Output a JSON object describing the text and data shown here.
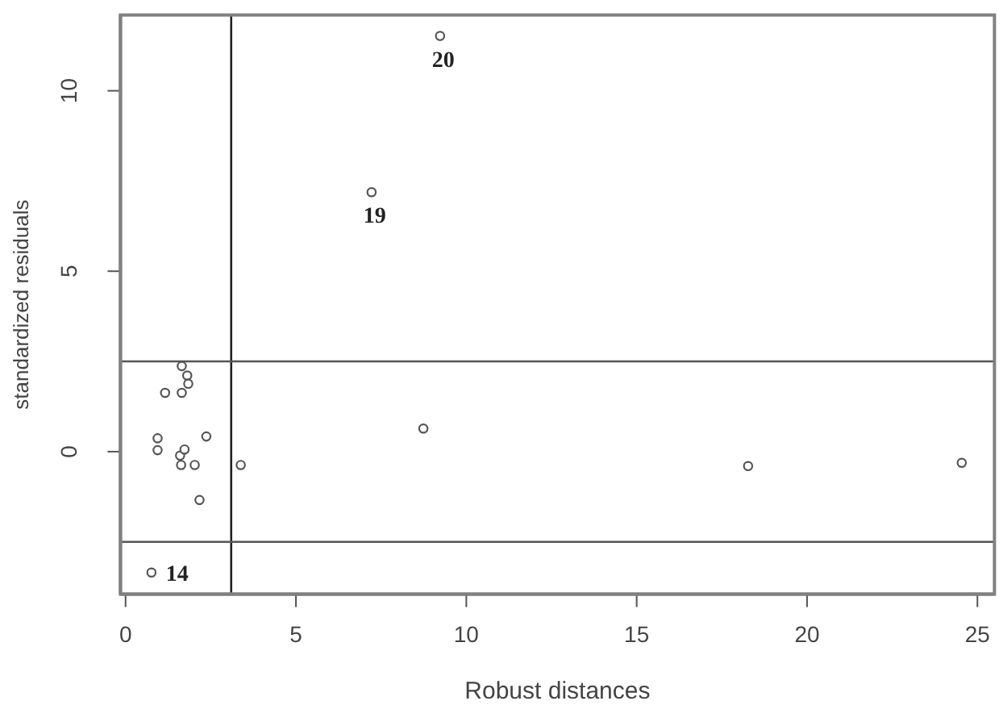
{
  "chart_data": {
    "type": "scatter",
    "xlabel": "Robust distances",
    "ylabel": "standardized residuals",
    "x": [
      0.76,
      0.94,
      0.94,
      1.16,
      1.6,
      1.63,
      1.65,
      1.65,
      1.73,
      1.81,
      1.84,
      2.03,
      2.17,
      2.37,
      3.38,
      7.22,
      8.74,
      9.23,
      18.27,
      24.54
    ],
    "values": [
      -3.35,
      0.37,
      0.04,
      1.63,
      -0.11,
      -0.37,
      2.37,
      1.63,
      0.06,
      2.11,
      1.88,
      -0.37,
      -1.34,
      0.42,
      -0.37,
      7.19,
      0.64,
      11.52,
      -0.4,
      -0.31
    ],
    "color": "#555555",
    "marker": "circle",
    "xlim": [
      -0.15,
      25.5
    ],
    "ylim": [
      -3.95,
      12.1
    ],
    "xticks": [
      0,
      5,
      10,
      15,
      20,
      25
    ],
    "yticks": [
      0,
      5,
      10
    ],
    "ref_lines": [
      {
        "axis": "x",
        "value": 3.1,
        "color": "#222222"
      },
      {
        "axis": "y",
        "value": 2.5,
        "color": "#555555"
      },
      {
        "axis": "y",
        "value": -2.5,
        "color": "#555555"
      }
    ],
    "annotations": [
      {
        "text": "20",
        "x": 9.23,
        "y": 11.52
      },
      {
        "text": "19",
        "x": 7.22,
        "y": 7.19
      },
      {
        "text": "14",
        "x": 0.76,
        "y": -3.35
      }
    ]
  }
}
